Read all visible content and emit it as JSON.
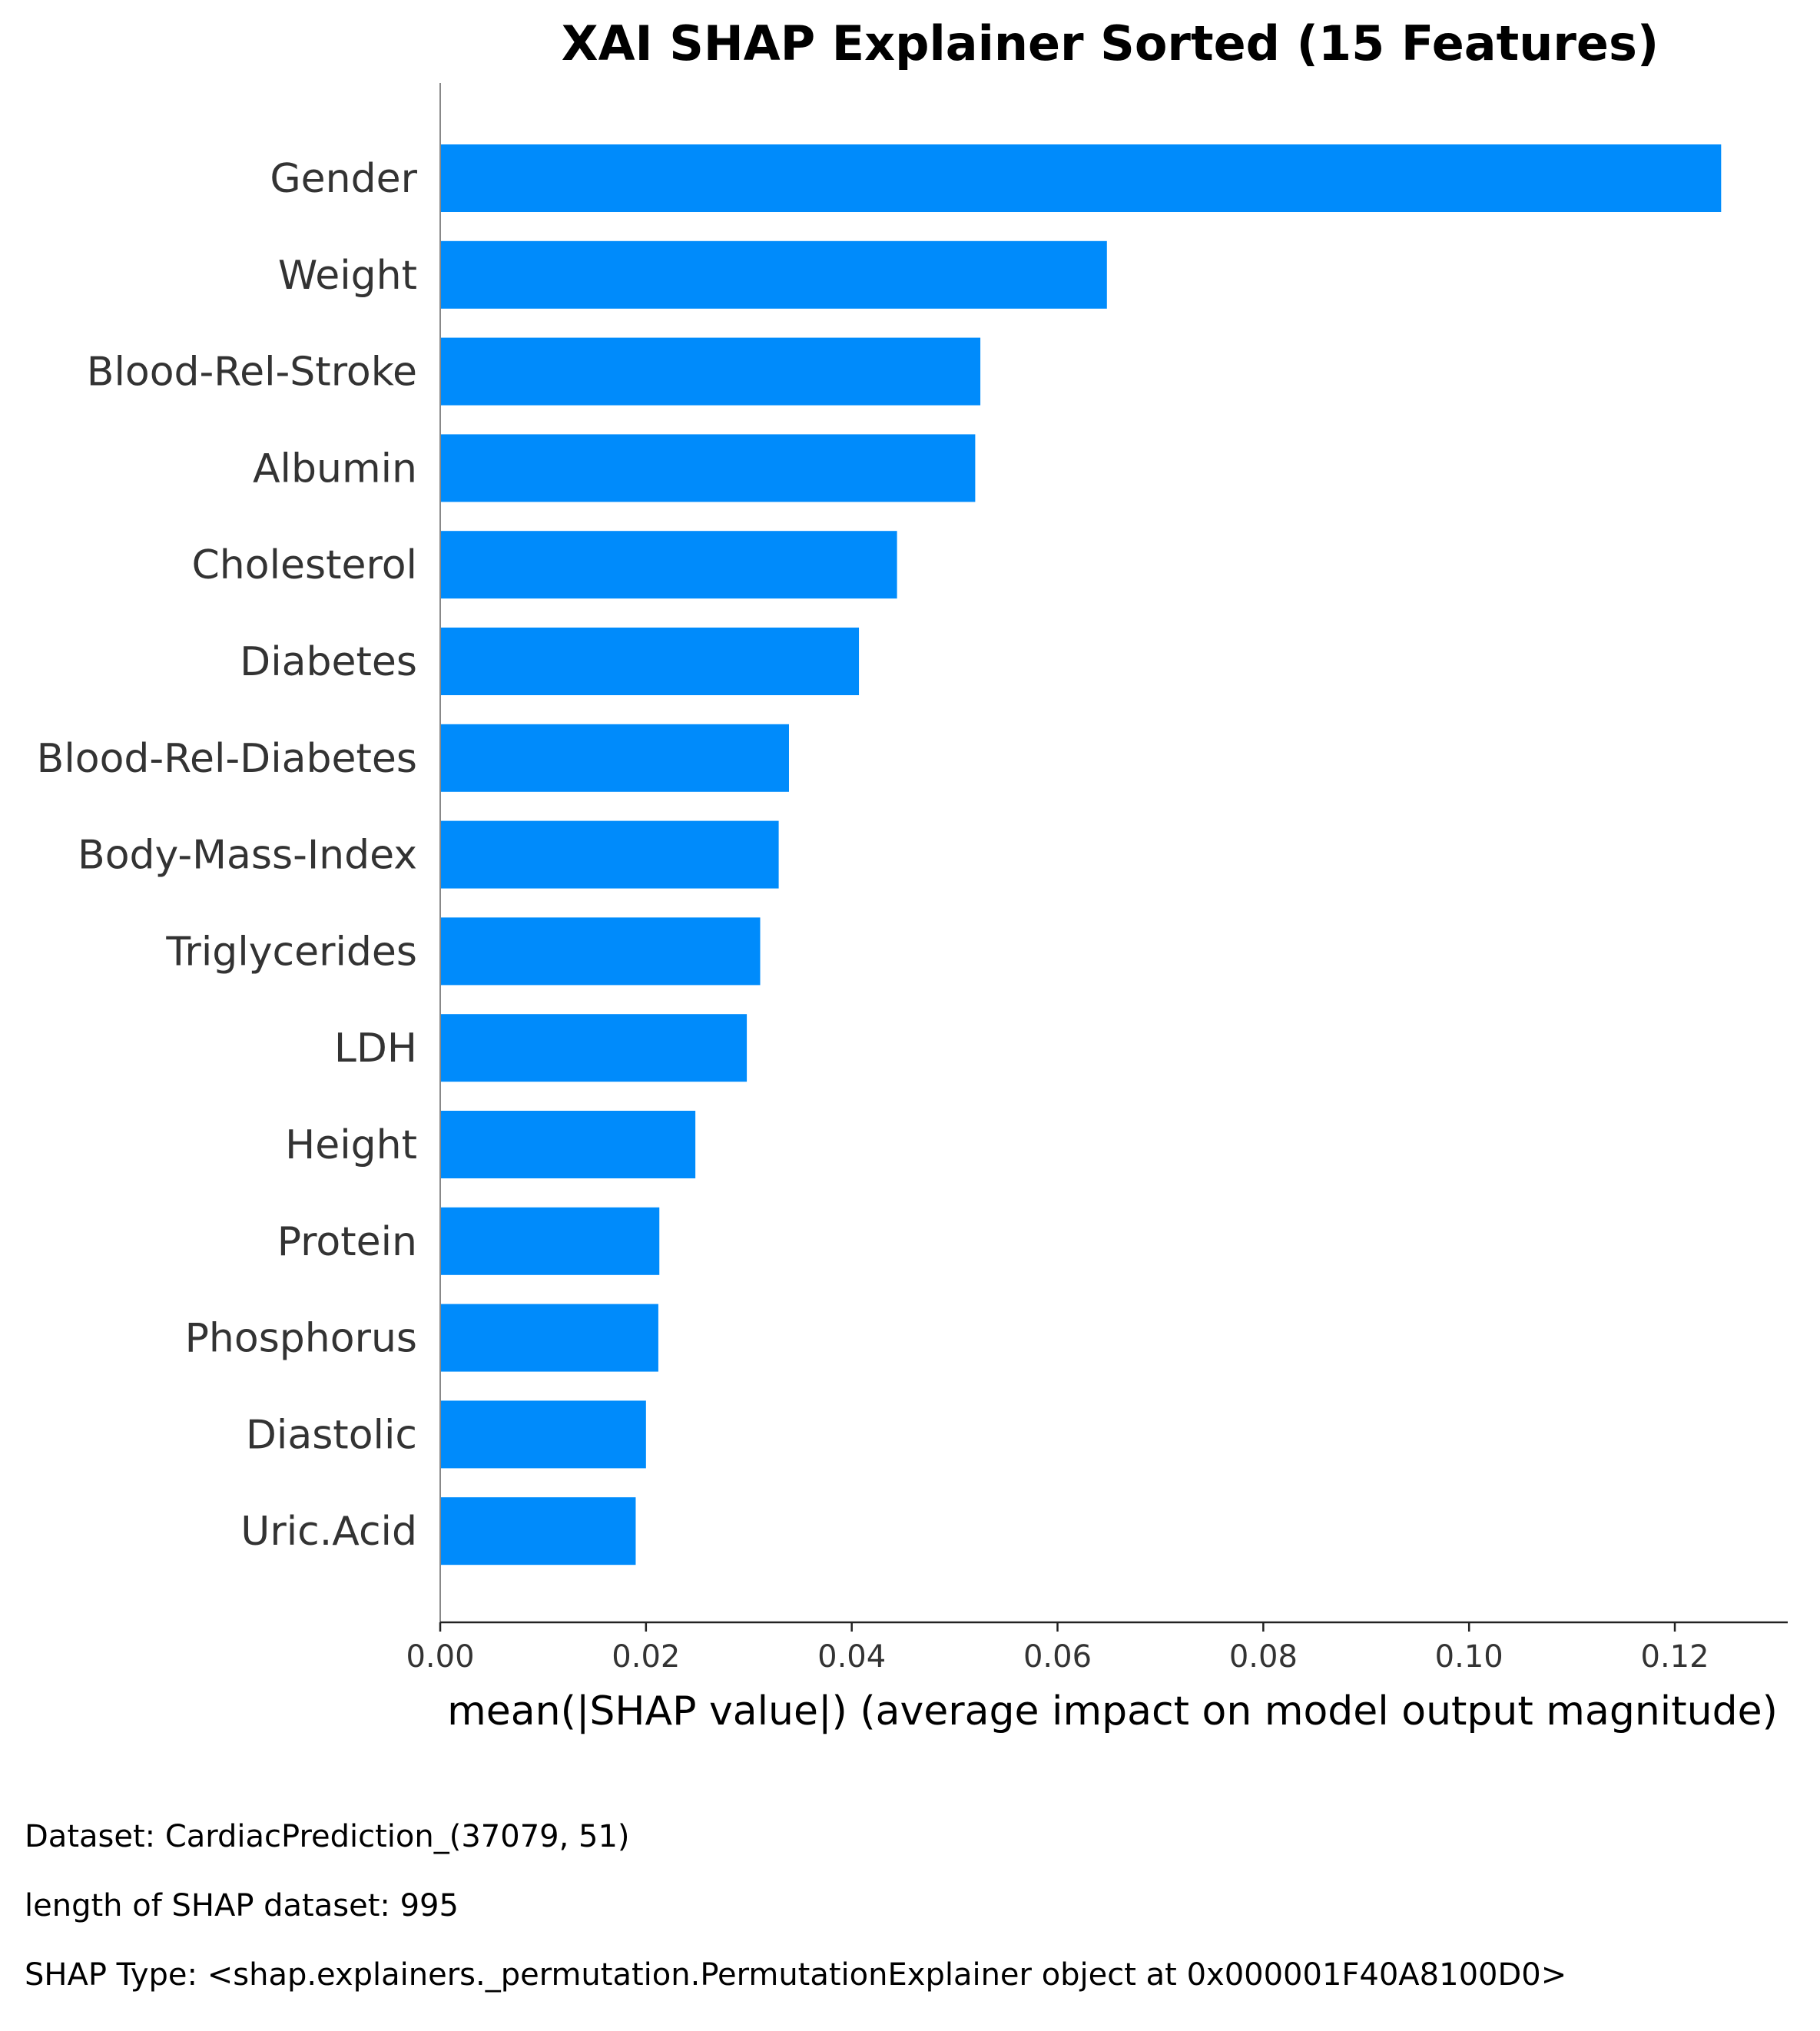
{
  "chart_data": {
    "type": "bar",
    "orientation": "horizontal",
    "title": "XAI SHAP Explainer Sorted  (15 Features)",
    "xlabel": "mean(|SHAP value|) (average impact on model output magnitude)",
    "ylabel": "",
    "xlim": [
      0,
      0.131
    ],
    "xticks": [
      "0.00",
      "0.02",
      "0.04",
      "0.06",
      "0.08",
      "0.10",
      "0.12"
    ],
    "bar_color": "#008bfb",
    "grid": false,
    "categories": [
      "Gender",
      "Weight",
      "Blood-Rel-Stroke",
      "Albumin",
      "Cholesterol",
      "Diabetes",
      "Blood-Rel-Diabetes",
      "Body-Mass-Index",
      "Triglycerides",
      "LDH",
      "Height",
      "Protein",
      "Phosphorus",
      "Diastolic",
      "Uric.Acid"
    ],
    "values": [
      0.1245,
      0.0648,
      0.0525,
      0.052,
      0.0444,
      0.0407,
      0.0339,
      0.0329,
      0.0311,
      0.0298,
      0.0248,
      0.0213,
      0.0212,
      0.02,
      0.019
    ]
  },
  "footnotes": {
    "dataset": "Dataset:  CardiacPrediction_(37079, 51)",
    "length": "length of SHAP dataset: 995",
    "shap_type": "SHAP Type: <shap.explainers._permutation.PermutationExplainer object at 0x000001F40A8100D0>"
  }
}
